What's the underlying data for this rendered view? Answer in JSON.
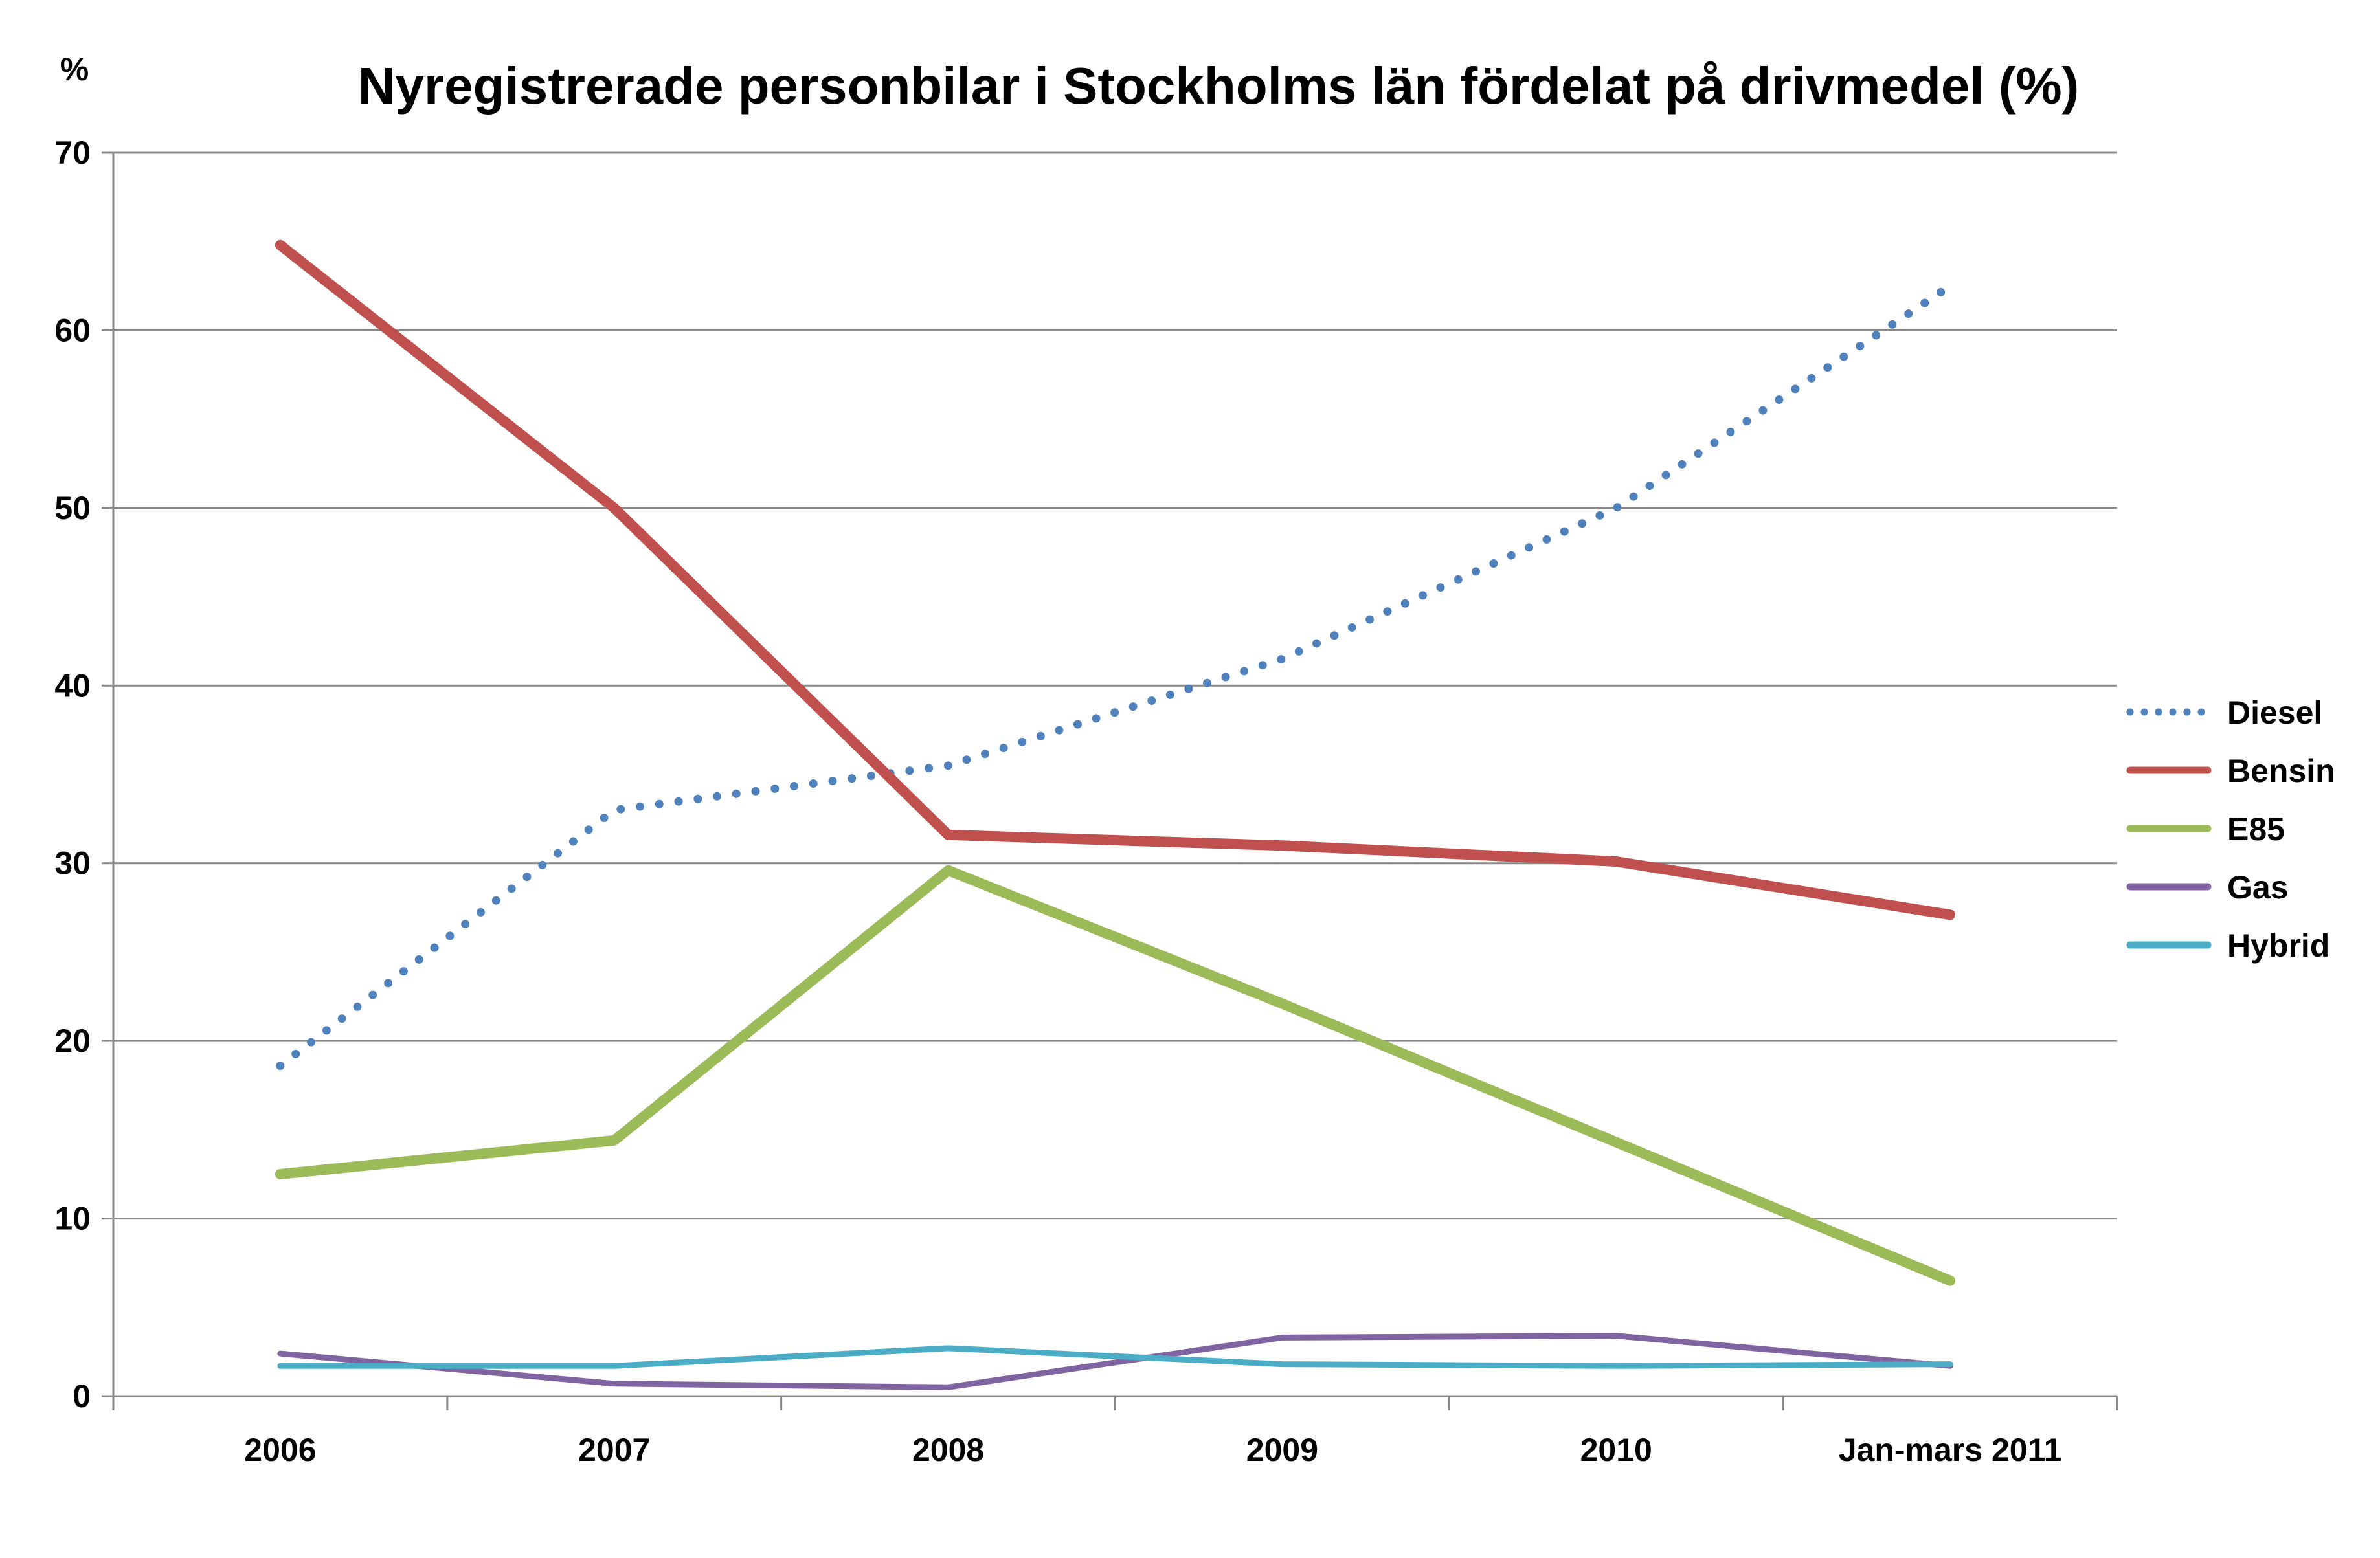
{
  "chart_data": {
    "type": "line",
    "title": "Nyregistrerade personbilar i Stockholms län fördelat på drivmedel (%)",
    "ylabel": "%",
    "xlabel": "",
    "categories": [
      "2006",
      "2007",
      "2008",
      "2009",
      "2010",
      "Jan-mars 2011"
    ],
    "ylim": [
      0,
      70
    ],
    "yticks": [
      0,
      10,
      20,
      30,
      40,
      50,
      60,
      70
    ],
    "grid": true,
    "legend": "right",
    "series": [
      {
        "name": "Diesel",
        "color": "#4F81BD",
        "style": "dotted",
        "values": [
          18.6,
          33.0,
          35.5,
          41.5,
          50.0,
          62.5
        ]
      },
      {
        "name": "Bensin",
        "color": "#C0504D",
        "style": "solid",
        "values": [
          64.8,
          50.0,
          31.6,
          31.0,
          30.1,
          27.1
        ]
      },
      {
        "name": "E85",
        "color": "#9BBB59",
        "style": "solid",
        "values": [
          12.5,
          14.4,
          29.6,
          22.1,
          14.3,
          6.5
        ]
      },
      {
        "name": "Gas",
        "color": "#8064A2",
        "style": "solid",
        "values": [
          2.4,
          0.7,
          0.5,
          3.3,
          3.4,
          1.7
        ]
      },
      {
        "name": "Hybrid",
        "color": "#4BACC6",
        "style": "solid",
        "values": [
          1.7,
          1.7,
          2.7,
          1.8,
          1.7,
          1.8
        ]
      }
    ]
  }
}
